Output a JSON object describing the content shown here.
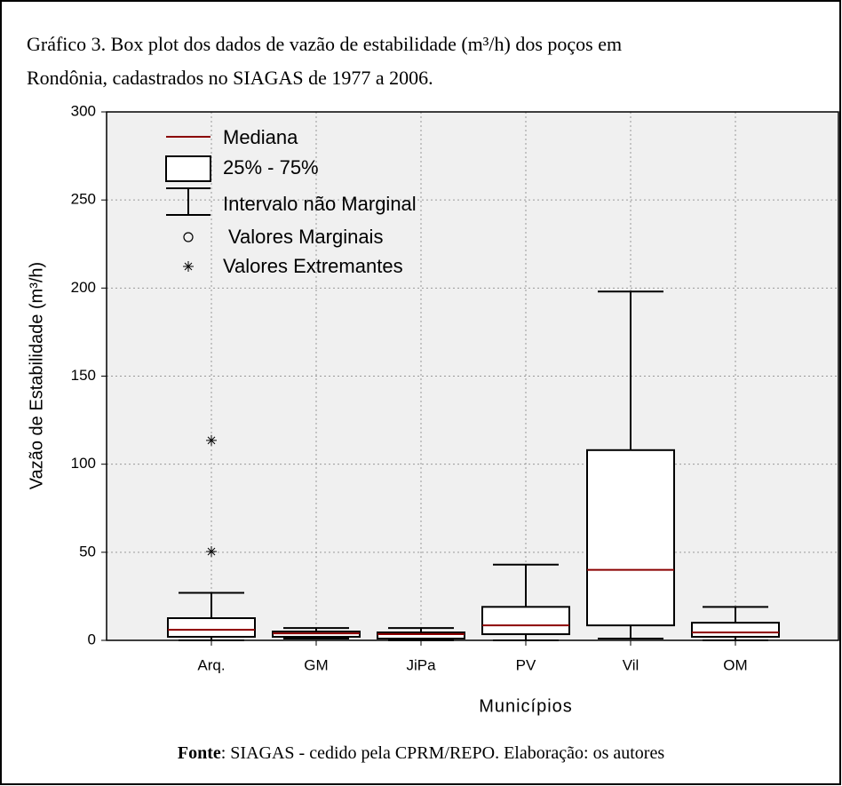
{
  "chart_data": {
    "type": "box",
    "title_lines": [
      "Gráfico 3. Box plot dos dados de vazão de estabilidade (m³/h) dos poços em",
      "Rondônia, cadastrados no SIAGAS de 1977 a 2006."
    ],
    "y_label": "Vazão de Estabilidade (m³/h)",
    "x_label": "Municípios",
    "source_label": "Fonte",
    "source_text": ": SIAGAS - cedido pela CPRM/REPO. Elaboração: os autores",
    "legend": {
      "median": "Mediana",
      "box": "25% - 75%",
      "whisker": "Intervalo não Marginal",
      "outlier": "Valores Marginais",
      "extreme": "Valores Extremantes"
    },
    "categories": [
      "Arq.",
      "GM",
      "JiPa",
      "PV",
      "Vil",
      "OM"
    ],
    "boxes": [
      {
        "min": 0,
        "q1": 2,
        "median": 6,
        "q3": 12.6,
        "max": 27,
        "extremes": [
          113.5,
          50.4
        ]
      },
      {
        "min": 1,
        "q1": 2,
        "median": 4,
        "q3": 5,
        "max": 7,
        "extremes": []
      },
      {
        "min": 0,
        "q1": 1,
        "median": 3.5,
        "q3": 4.5,
        "max": 7,
        "extremes": []
      },
      {
        "min": 0,
        "q1": 3.5,
        "median": 8.5,
        "q3": 19,
        "max": 43,
        "extremes": []
      },
      {
        "min": 1,
        "q1": 8.5,
        "median": 40,
        "q3": 108,
        "max": 198,
        "extremes": []
      },
      {
        "min": 0,
        "q1": 2,
        "median": 4.5,
        "q3": 10,
        "max": 19,
        "extremes": []
      }
    ],
    "median_color": "#8b0000",
    "box_color": "#ffffff",
    "ylim": [
      0,
      300
    ],
    "yticks": [
      0,
      50,
      100,
      150,
      200,
      250,
      300
    ],
    "grid": true
  }
}
